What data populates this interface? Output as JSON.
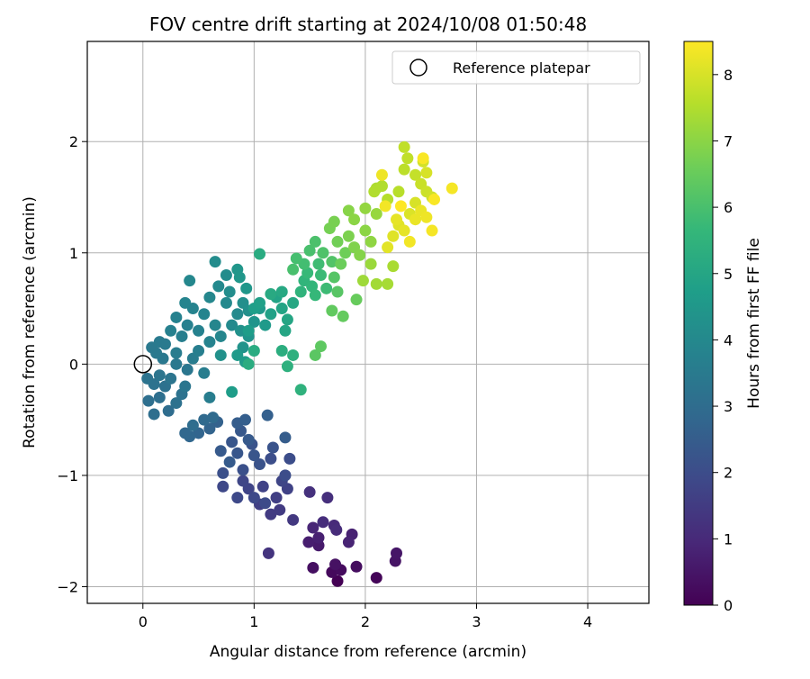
{
  "chart_data": {
    "type": "scatter",
    "title": "FOV centre drift starting at 2024/10/08 01:50:48",
    "xlabel": "Angular distance from reference (arcmin)",
    "ylabel": "Rotation from reference (arcmin)",
    "xlim": [
      -0.5,
      4.55
    ],
    "ylim": [
      -2.15,
      2.9
    ],
    "x_ticks": [
      0,
      1,
      2,
      3,
      4
    ],
    "x_tick_labels": [
      "0",
      "1",
      "2",
      "3",
      "4"
    ],
    "y_ticks": [
      -2,
      -1,
      0,
      1,
      2
    ],
    "y_tick_labels": [
      "−2",
      "−1",
      "0",
      "1",
      "2"
    ],
    "grid": true,
    "legend": {
      "position": "top-right",
      "label": "Reference platepar"
    },
    "reference_point": {
      "x": 0,
      "y": 0
    },
    "colorbar": {
      "label": "Hours from first FF file",
      "range": [
        0,
        8.5
      ],
      "ticks": [
        0,
        1,
        2,
        3,
        4,
        5,
        6,
        7,
        8
      ],
      "tick_labels": [
        "0",
        "1",
        "2",
        "3",
        "4",
        "5",
        "6",
        "7",
        "8"
      ],
      "colormap": "viridis",
      "colors": [
        "#440154",
        "#482878",
        "#3e4989",
        "#31688e",
        "#26828e",
        "#1f9e89",
        "#35b779",
        "#6ece58",
        "#b5de2b",
        "#fde725"
      ]
    },
    "points": [
      {
        "x": 1.75,
        "y": -1.95,
        "c": 0.0
      },
      {
        "x": 2.1,
        "y": -1.92,
        "c": 0.1
      },
      {
        "x": 1.7,
        "y": -1.87,
        "c": 0.2
      },
      {
        "x": 1.78,
        "y": -1.85,
        "c": 0.25
      },
      {
        "x": 1.92,
        "y": -1.82,
        "c": 0.3
      },
      {
        "x": 1.53,
        "y": -1.83,
        "c": 0.35
      },
      {
        "x": 1.73,
        "y": -1.8,
        "c": 0.4
      },
      {
        "x": 2.27,
        "y": -1.77,
        "c": 0.45
      },
      {
        "x": 2.28,
        "y": -1.7,
        "c": 0.5
      },
      {
        "x": 1.58,
        "y": -1.63,
        "c": 0.6
      },
      {
        "x": 1.49,
        "y": -1.6,
        "c": 0.7
      },
      {
        "x": 1.58,
        "y": -1.56,
        "c": 0.75
      },
      {
        "x": 1.88,
        "y": -1.53,
        "c": 0.8
      },
      {
        "x": 1.85,
        "y": -1.6,
        "c": 0.85
      },
      {
        "x": 1.53,
        "y": -1.47,
        "c": 0.9
      },
      {
        "x": 1.72,
        "y": -1.45,
        "c": 1.0
      },
      {
        "x": 1.74,
        "y": -1.49,
        "c": 1.05
      },
      {
        "x": 1.62,
        "y": -1.42,
        "c": 1.1
      },
      {
        "x": 1.66,
        "y": -1.2,
        "c": 1.15
      },
      {
        "x": 1.5,
        "y": -1.15,
        "c": 1.2
      },
      {
        "x": 1.13,
        "y": -1.7,
        "c": 1.3
      },
      {
        "x": 1.35,
        "y": -1.4,
        "c": 1.4
      },
      {
        "x": 1.15,
        "y": -1.35,
        "c": 1.5
      },
      {
        "x": 1.23,
        "y": -1.31,
        "c": 1.5
      },
      {
        "x": 1.05,
        "y": -1.26,
        "c": 1.6
      },
      {
        "x": 1.2,
        "y": -1.2,
        "c": 1.6
      },
      {
        "x": 1.3,
        "y": -1.12,
        "c": 1.7
      },
      {
        "x": 1.08,
        "y": -1.1,
        "c": 1.7
      },
      {
        "x": 0.95,
        "y": -1.12,
        "c": 1.75
      },
      {
        "x": 0.9,
        "y": -1.05,
        "c": 1.8
      },
      {
        "x": 1.25,
        "y": -1.05,
        "c": 1.8
      },
      {
        "x": 0.72,
        "y": -1.1,
        "c": 1.85
      },
      {
        "x": 0.85,
        "y": -1.2,
        "c": 1.9
      },
      {
        "x": 1.0,
        "y": -1.2,
        "c": 1.9
      },
      {
        "x": 1.1,
        "y": -1.25,
        "c": 1.95
      },
      {
        "x": 1.28,
        "y": -1.0,
        "c": 2.0
      },
      {
        "x": 1.32,
        "y": -0.85,
        "c": 2.0
      },
      {
        "x": 1.15,
        "y": -0.85,
        "c": 2.05
      },
      {
        "x": 0.72,
        "y": -0.98,
        "c": 2.1
      },
      {
        "x": 0.9,
        "y": -0.95,
        "c": 2.1
      },
      {
        "x": 1.05,
        "y": -0.9,
        "c": 2.15
      },
      {
        "x": 1.17,
        "y": -0.75,
        "c": 2.2
      },
      {
        "x": 0.98,
        "y": -0.72,
        "c": 2.2
      },
      {
        "x": 1.0,
        "y": -0.82,
        "c": 2.25
      },
      {
        "x": 0.85,
        "y": -0.8,
        "c": 2.3
      },
      {
        "x": 0.8,
        "y": -0.7,
        "c": 2.3
      },
      {
        "x": 0.88,
        "y": -0.6,
        "c": 2.35
      },
      {
        "x": 0.95,
        "y": -0.68,
        "c": 2.4
      },
      {
        "x": 0.7,
        "y": -0.78,
        "c": 2.4
      },
      {
        "x": 0.78,
        "y": -0.88,
        "c": 2.45
      },
      {
        "x": 1.28,
        "y": -0.66,
        "c": 2.5
      },
      {
        "x": 0.85,
        "y": -0.53,
        "c": 2.5
      },
      {
        "x": 0.92,
        "y": -0.5,
        "c": 2.55
      },
      {
        "x": 1.12,
        "y": -0.46,
        "c": 2.6
      },
      {
        "x": 0.67,
        "y": -0.52,
        "c": 2.65
      },
      {
        "x": 0.6,
        "y": -0.58,
        "c": 2.7
      },
      {
        "x": 0.5,
        "y": -0.62,
        "c": 2.75
      },
      {
        "x": 0.42,
        "y": -0.65,
        "c": 2.8
      },
      {
        "x": 0.38,
        "y": -0.62,
        "c": 2.85
      },
      {
        "x": 0.55,
        "y": -0.5,
        "c": 2.9
      },
      {
        "x": 0.63,
        "y": -0.48,
        "c": 2.95
      },
      {
        "x": 0.45,
        "y": -0.55,
        "c": 3.0
      },
      {
        "x": 0.23,
        "y": -0.42,
        "c": 3.0
      },
      {
        "x": 0.1,
        "y": -0.45,
        "c": 3.05
      },
      {
        "x": 0.05,
        "y": -0.33,
        "c": 3.1
      },
      {
        "x": 0.15,
        "y": -0.3,
        "c": 3.1
      },
      {
        "x": 0.3,
        "y": -0.35,
        "c": 3.15
      },
      {
        "x": 0.2,
        "y": -0.2,
        "c": 3.15
      },
      {
        "x": 0.35,
        "y": -0.27,
        "c": 3.2
      },
      {
        "x": 0.1,
        "y": -0.18,
        "c": 3.2
      },
      {
        "x": 0.04,
        "y": -0.13,
        "c": 3.25
      },
      {
        "x": 0.15,
        "y": -0.1,
        "c": 3.3
      },
      {
        "x": 0.25,
        "y": -0.13,
        "c": 3.3
      },
      {
        "x": 0.38,
        "y": -0.2,
        "c": 3.35
      },
      {
        "x": 0.4,
        "y": -0.05,
        "c": 3.35
      },
      {
        "x": 0.3,
        "y": 0.0,
        "c": 3.4
      },
      {
        "x": 0.18,
        "y": 0.05,
        "c": 3.4
      },
      {
        "x": 0.12,
        "y": 0.1,
        "c": 3.45
      },
      {
        "x": 0.08,
        "y": 0.15,
        "c": 3.45
      },
      {
        "x": 0.15,
        "y": 0.2,
        "c": 3.5
      },
      {
        "x": 0.2,
        "y": 0.18,
        "c": 3.5
      },
      {
        "x": 0.3,
        "y": 0.1,
        "c": 3.55
      },
      {
        "x": 0.45,
        "y": 0.05,
        "c": 3.55
      },
      {
        "x": 0.55,
        "y": -0.08,
        "c": 3.6
      },
      {
        "x": 0.6,
        "y": -0.3,
        "c": 3.6
      },
      {
        "x": 0.5,
        "y": 0.12,
        "c": 3.65
      },
      {
        "x": 0.35,
        "y": 0.25,
        "c": 3.65
      },
      {
        "x": 0.25,
        "y": 0.3,
        "c": 3.7
      },
      {
        "x": 0.4,
        "y": 0.35,
        "c": 3.7
      },
      {
        "x": 0.3,
        "y": 0.42,
        "c": 3.75
      },
      {
        "x": 0.5,
        "y": 0.3,
        "c": 3.75
      },
      {
        "x": 0.6,
        "y": 0.2,
        "c": 3.8
      },
      {
        "x": 0.45,
        "y": 0.5,
        "c": 3.8
      },
      {
        "x": 0.38,
        "y": 0.55,
        "c": 3.85
      },
      {
        "x": 0.55,
        "y": 0.45,
        "c": 3.85
      },
      {
        "x": 0.65,
        "y": 0.35,
        "c": 3.9
      },
      {
        "x": 0.7,
        "y": 0.25,
        "c": 3.9
      },
      {
        "x": 0.6,
        "y": 0.6,
        "c": 3.95
      },
      {
        "x": 0.42,
        "y": 0.75,
        "c": 3.95
      },
      {
        "x": 0.68,
        "y": 0.7,
        "c": 4.0
      },
      {
        "x": 0.75,
        "y": 0.55,
        "c": 4.0
      },
      {
        "x": 0.85,
        "y": 0.45,
        "c": 4.05
      },
      {
        "x": 0.8,
        "y": 0.35,
        "c": 4.05
      },
      {
        "x": 0.65,
        "y": 0.92,
        "c": 4.1
      },
      {
        "x": 0.75,
        "y": 0.8,
        "c": 4.1
      },
      {
        "x": 0.78,
        "y": 0.65,
        "c": 4.15
      },
      {
        "x": 0.9,
        "y": 0.55,
        "c": 4.2
      },
      {
        "x": 0.95,
        "y": 0.48,
        "c": 4.25
      },
      {
        "x": 0.88,
        "y": 0.3,
        "c": 4.3
      },
      {
        "x": 0.7,
        "y": 0.08,
        "c": 4.3
      },
      {
        "x": 0.9,
        "y": 0.15,
        "c": 4.35
      },
      {
        "x": 0.95,
        "y": 0.25,
        "c": 4.4
      },
      {
        "x": 1.0,
        "y": 0.38,
        "c": 4.4
      },
      {
        "x": 0.85,
        "y": 0.85,
        "c": 4.45
      },
      {
        "x": 0.87,
        "y": 0.78,
        "c": 4.5
      },
      {
        "x": 0.93,
        "y": 0.68,
        "c": 4.5
      },
      {
        "x": 1.05,
        "y": 0.5,
        "c": 4.55
      },
      {
        "x": 1.1,
        "y": 0.35,
        "c": 4.6
      },
      {
        "x": 0.85,
        "y": 0.08,
        "c": 4.6
      },
      {
        "x": 0.92,
        "y": 0.02,
        "c": 4.65
      },
      {
        "x": 0.8,
        "y": -0.25,
        "c": 4.7
      },
      {
        "x": 0.95,
        "y": 0.3,
        "c": 4.7
      },
      {
        "x": 1.0,
        "y": 0.5,
        "c": 4.75
      },
      {
        "x": 1.05,
        "y": 0.55,
        "c": 4.8
      },
      {
        "x": 1.15,
        "y": 0.45,
        "c": 4.85
      },
      {
        "x": 1.2,
        "y": 0.6,
        "c": 4.9
      },
      {
        "x": 1.25,
        "y": 0.5,
        "c": 4.95
      },
      {
        "x": 1.3,
        "y": 0.4,
        "c": 5.0
      },
      {
        "x": 1.28,
        "y": 0.3,
        "c": 5.0
      },
      {
        "x": 1.35,
        "y": 0.55,
        "c": 5.05
      },
      {
        "x": 1.25,
        "y": 0.65,
        "c": 5.1
      },
      {
        "x": 1.15,
        "y": 0.63,
        "c": 5.15
      },
      {
        "x": 1.05,
        "y": 0.99,
        "c": 5.2
      },
      {
        "x": 1.0,
        "y": 0.12,
        "c": 5.2
      },
      {
        "x": 0.95,
        "y": 0.0,
        "c": 5.25
      },
      {
        "x": 1.25,
        "y": 0.12,
        "c": 5.3
      },
      {
        "x": 1.35,
        "y": 0.08,
        "c": 5.35
      },
      {
        "x": 1.3,
        "y": -0.02,
        "c": 5.4
      },
      {
        "x": 1.42,
        "y": -0.23,
        "c": 5.45
      },
      {
        "x": 1.42,
        "y": 0.65,
        "c": 5.5
      },
      {
        "x": 1.45,
        "y": 0.75,
        "c": 5.55
      },
      {
        "x": 1.52,
        "y": 0.7,
        "c": 5.6
      },
      {
        "x": 1.55,
        "y": 0.62,
        "c": 5.65
      },
      {
        "x": 1.48,
        "y": 0.82,
        "c": 5.7
      },
      {
        "x": 1.6,
        "y": 0.8,
        "c": 5.75
      },
      {
        "x": 1.65,
        "y": 0.68,
        "c": 5.8
      },
      {
        "x": 1.58,
        "y": 0.9,
        "c": 5.85
      },
      {
        "x": 1.45,
        "y": 0.9,
        "c": 5.9
      },
      {
        "x": 1.38,
        "y": 0.95,
        "c": 5.95
      },
      {
        "x": 1.35,
        "y": 0.85,
        "c": 6.0
      },
      {
        "x": 1.5,
        "y": 1.02,
        "c": 6.0
      },
      {
        "x": 1.55,
        "y": 1.1,
        "c": 6.05
      },
      {
        "x": 1.62,
        "y": 1.0,
        "c": 6.1
      },
      {
        "x": 1.7,
        "y": 0.92,
        "c": 6.15
      },
      {
        "x": 1.72,
        "y": 0.78,
        "c": 6.2
      },
      {
        "x": 1.75,
        "y": 0.65,
        "c": 6.25
      },
      {
        "x": 1.55,
        "y": 0.08,
        "c": 6.3
      },
      {
        "x": 1.6,
        "y": 0.16,
        "c": 6.35
      },
      {
        "x": 1.7,
        "y": 0.48,
        "c": 6.4
      },
      {
        "x": 1.8,
        "y": 0.43,
        "c": 6.45
      },
      {
        "x": 1.92,
        "y": 0.58,
        "c": 6.5
      },
      {
        "x": 1.78,
        "y": 0.9,
        "c": 6.55
      },
      {
        "x": 1.82,
        "y": 1.0,
        "c": 6.6
      },
      {
        "x": 1.75,
        "y": 1.1,
        "c": 6.65
      },
      {
        "x": 1.68,
        "y": 1.22,
        "c": 6.7
      },
      {
        "x": 1.72,
        "y": 1.28,
        "c": 6.75
      },
      {
        "x": 1.85,
        "y": 1.15,
        "c": 6.8
      },
      {
        "x": 1.9,
        "y": 1.05,
        "c": 6.85
      },
      {
        "x": 1.95,
        "y": 0.98,
        "c": 6.9
      },
      {
        "x": 1.85,
        "y": 1.38,
        "c": 6.95
      },
      {
        "x": 1.9,
        "y": 1.3,
        "c": 7.0
      },
      {
        "x": 2.0,
        "y": 1.2,
        "c": 7.0
      },
      {
        "x": 2.05,
        "y": 1.1,
        "c": 7.05
      },
      {
        "x": 2.0,
        "y": 1.4,
        "c": 7.1
      },
      {
        "x": 2.1,
        "y": 1.35,
        "c": 7.15
      },
      {
        "x": 2.05,
        "y": 0.9,
        "c": 7.2
      },
      {
        "x": 1.98,
        "y": 0.75,
        "c": 7.25
      },
      {
        "x": 2.1,
        "y": 0.72,
        "c": 7.3
      },
      {
        "x": 2.2,
        "y": 0.72,
        "c": 7.35
      },
      {
        "x": 2.25,
        "y": 0.88,
        "c": 7.4
      },
      {
        "x": 2.1,
        "y": 1.58,
        "c": 7.45
      },
      {
        "x": 2.08,
        "y": 1.55,
        "c": 7.5
      },
      {
        "x": 2.15,
        "y": 1.6,
        "c": 7.5
      },
      {
        "x": 2.2,
        "y": 1.48,
        "c": 7.55
      },
      {
        "x": 2.3,
        "y": 1.55,
        "c": 7.6
      },
      {
        "x": 2.35,
        "y": 1.75,
        "c": 7.65
      },
      {
        "x": 2.35,
        "y": 1.95,
        "c": 7.7
      },
      {
        "x": 2.38,
        "y": 1.85,
        "c": 7.7
      },
      {
        "x": 2.45,
        "y": 1.7,
        "c": 7.75
      },
      {
        "x": 2.5,
        "y": 1.62,
        "c": 7.8
      },
      {
        "x": 2.55,
        "y": 1.55,
        "c": 7.85
      },
      {
        "x": 2.6,
        "y": 1.5,
        "c": 7.9
      },
      {
        "x": 2.52,
        "y": 1.82,
        "c": 7.95
      },
      {
        "x": 2.55,
        "y": 1.72,
        "c": 8.0
      },
      {
        "x": 2.45,
        "y": 1.45,
        "c": 8.0
      },
      {
        "x": 2.4,
        "y": 1.35,
        "c": 8.05
      },
      {
        "x": 2.3,
        "y": 1.25,
        "c": 8.1
      },
      {
        "x": 2.25,
        "y": 1.15,
        "c": 8.1
      },
      {
        "x": 2.2,
        "y": 1.05,
        "c": 8.15
      },
      {
        "x": 2.28,
        "y": 1.3,
        "c": 8.2
      },
      {
        "x": 2.35,
        "y": 1.2,
        "c": 8.2
      },
      {
        "x": 2.45,
        "y": 1.3,
        "c": 8.25
      },
      {
        "x": 2.5,
        "y": 1.38,
        "c": 8.25
      },
      {
        "x": 2.55,
        "y": 1.32,
        "c": 8.3
      },
      {
        "x": 2.15,
        "y": 1.7,
        "c": 8.3
      },
      {
        "x": 2.18,
        "y": 1.42,
        "c": 8.35
      },
      {
        "x": 2.4,
        "y": 1.1,
        "c": 8.35
      },
      {
        "x": 2.6,
        "y": 1.2,
        "c": 8.4
      },
      {
        "x": 2.78,
        "y": 1.58,
        "c": 8.4
      },
      {
        "x": 2.52,
        "y": 1.85,
        "c": 8.45
      },
      {
        "x": 2.62,
        "y": 1.48,
        "c": 8.45
      },
      {
        "x": 2.32,
        "y": 1.42,
        "c": 8.5
      }
    ]
  }
}
